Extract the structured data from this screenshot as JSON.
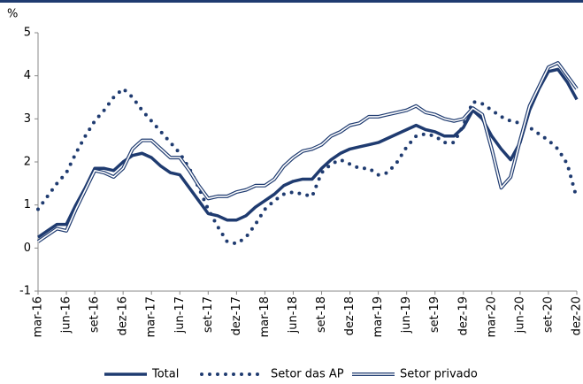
{
  "chart_data": {
    "type": "line",
    "y_label": "%",
    "categories": [
      "mar-16",
      null,
      null,
      "jun-16",
      null,
      null,
      "set-16",
      null,
      null,
      "dez-16",
      null,
      null,
      "mar-17",
      null,
      null,
      "jun-17",
      null,
      null,
      "set-17",
      null,
      null,
      "dez-17",
      null,
      null,
      "mar-18",
      null,
      null,
      "jun-18",
      null,
      null,
      "set-18",
      null,
      null,
      "dez-18",
      null,
      null,
      "mar-19",
      null,
      null,
      "jun-19",
      null,
      null,
      "set-19",
      null,
      null,
      "dez-19",
      null,
      null,
      "mar-20",
      null,
      null,
      "jun-20",
      null,
      null,
      "set-20",
      null,
      null,
      "dez-20"
    ],
    "series": [
      {
        "name": "Total",
        "color": "#1f3b70",
        "line_style": "solid",
        "values": [
          0.25,
          0.4,
          0.55,
          0.55,
          1.0,
          1.4,
          1.85,
          1.85,
          1.8,
          2.0,
          2.15,
          2.2,
          2.1,
          1.9,
          1.75,
          1.7,
          1.4,
          1.1,
          0.8,
          0.75,
          0.65,
          0.65,
          0.75,
          0.95,
          1.1,
          1.25,
          1.45,
          1.55,
          1.6,
          1.6,
          1.85,
          2.05,
          2.2,
          2.3,
          2.35,
          2.4,
          2.45,
          2.55,
          2.65,
          2.75,
          2.85,
          2.75,
          2.7,
          2.6,
          2.6,
          2.8,
          3.2,
          3.0,
          2.6,
          2.3,
          2.05,
          2.45,
          3.2,
          3.7,
          4.1,
          4.15,
          3.85,
          3.45
        ]
      },
      {
        "name": "Setor das AP",
        "color": "#1f3b70",
        "line_style": "dotted",
        "values": [
          0.9,
          1.2,
          1.5,
          1.75,
          2.2,
          2.6,
          2.95,
          3.2,
          3.5,
          3.7,
          3.5,
          3.2,
          2.95,
          2.7,
          2.45,
          2.2,
          1.85,
          1.4,
          0.9,
          0.5,
          0.15,
          0.1,
          0.25,
          0.55,
          0.9,
          1.1,
          1.25,
          1.3,
          1.25,
          1.2,
          1.75,
          1.95,
          2.05,
          1.95,
          1.85,
          1.85,
          1.7,
          1.75,
          2.0,
          2.35,
          2.6,
          2.65,
          2.6,
          2.45,
          2.45,
          2.85,
          3.4,
          3.35,
          3.2,
          3.05,
          2.95,
          2.9,
          2.8,
          2.65,
          2.5,
          2.3,
          1.95,
          1.15
        ]
      },
      {
        "name": "Setor privado",
        "color": "#1f3b70",
        "line_style": "double",
        "values": [
          0.15,
          0.3,
          0.45,
          0.4,
          0.9,
          1.35,
          1.8,
          1.75,
          1.65,
          1.85,
          2.3,
          2.5,
          2.5,
          2.3,
          2.1,
          2.1,
          1.8,
          1.45,
          1.15,
          1.2,
          1.2,
          1.3,
          1.35,
          1.45,
          1.45,
          1.6,
          1.9,
          2.1,
          2.25,
          2.3,
          2.4,
          2.6,
          2.7,
          2.85,
          2.9,
          3.05,
          3.05,
          3.1,
          3.15,
          3.2,
          3.3,
          3.15,
          3.1,
          3.0,
          2.95,
          3.0,
          3.25,
          3.1,
          2.3,
          1.4,
          1.65,
          2.5,
          3.3,
          3.75,
          4.2,
          4.3,
          4.0,
          3.7
        ]
      }
    ],
    "ylim": [
      -1,
      5
    ],
    "yticks": [
      -1,
      0,
      1,
      2,
      3,
      4,
      5
    ],
    "grid": false,
    "legend": "bottom"
  }
}
